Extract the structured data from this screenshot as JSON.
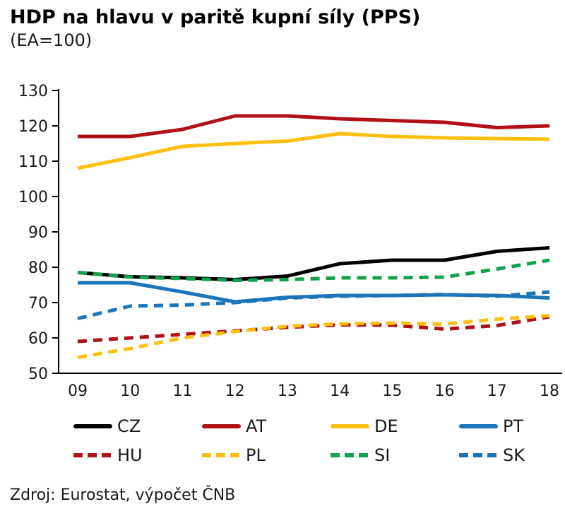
{
  "header": {
    "title": "HDP na hlavu v paritě kupní síly (PPS)",
    "subtitle": "(EA=100)"
  },
  "source": "Zdroj: Eurostat, výpočet ČNB",
  "colors": {
    "black": "#000000",
    "red": "#b01116",
    "yellow": "#fdc010",
    "blue": "#1b75bb",
    "green": "#10a24e",
    "axis": "#000000",
    "tick_text": "#1a1a1a"
  },
  "chart_data": {
    "type": "line",
    "x": [
      "09",
      "10",
      "11",
      "12",
      "13",
      "14",
      "15",
      "16",
      "17",
      "18"
    ],
    "xlabel": "",
    "ylabel": "",
    "ylim": [
      50,
      130
    ],
    "yticks": [
      50,
      60,
      70,
      80,
      90,
      100,
      110,
      120,
      130
    ],
    "grid": false,
    "legend_position": "bottom",
    "series": [
      {
        "name": "CZ",
        "color": "#000000",
        "style": "solid",
        "values": [
          78.5,
          77.3,
          77.0,
          76.5,
          77.5,
          81.0,
          82.0,
          82.0,
          84.5,
          85.5
        ]
      },
      {
        "name": "AT",
        "color": "#b01116",
        "style": "solid",
        "values": [
          117.0,
          117.0,
          119.0,
          122.8,
          122.8,
          122.0,
          121.5,
          121.0,
          119.5,
          120.0
        ]
      },
      {
        "name": "DE",
        "color": "#fdc010",
        "style": "solid",
        "values": [
          108.0,
          111.0,
          114.2,
          115.0,
          115.7,
          117.8,
          117.0,
          116.6,
          116.4,
          116.2
        ]
      },
      {
        "name": "PT",
        "color": "#1b75bb",
        "style": "solid",
        "values": [
          75.6,
          75.6,
          73.0,
          70.2,
          71.5,
          72.0,
          72.0,
          72.2,
          72.0,
          71.3
        ]
      },
      {
        "name": "HU",
        "color": "#b01116",
        "style": "dashed",
        "values": [
          59.0,
          60.0,
          61.0,
          62.0,
          63.0,
          63.7,
          63.6,
          62.5,
          63.5,
          66.0
        ]
      },
      {
        "name": "PL",
        "color": "#fdc010",
        "style": "dashed",
        "values": [
          54.5,
          57.0,
          60.0,
          61.8,
          63.3,
          64.0,
          64.2,
          63.9,
          65.3,
          66.3
        ]
      },
      {
        "name": "SI",
        "color": "#10a24e",
        "style": "dashed",
        "values": [
          78.5,
          77.2,
          76.8,
          76.3,
          76.5,
          77.0,
          77.0,
          77.2,
          79.5,
          82.0
        ]
      },
      {
        "name": "SK",
        "color": "#1b75bb",
        "style": "dashed",
        "values": [
          65.5,
          69.0,
          69.3,
          70.0,
          71.3,
          71.8,
          72.0,
          72.3,
          71.8,
          73.0
        ]
      }
    ]
  }
}
